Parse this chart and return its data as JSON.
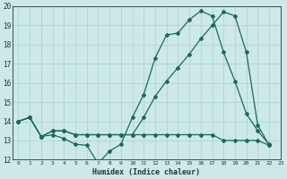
{
  "xlabel": "Humidex (Indice chaleur)",
  "xlim": [
    -0.5,
    23
  ],
  "ylim": [
    12,
    20
  ],
  "yticks": [
    12,
    13,
    14,
    15,
    16,
    17,
    18,
    19,
    20
  ],
  "xticks": [
    0,
    1,
    2,
    3,
    4,
    5,
    6,
    7,
    8,
    9,
    10,
    11,
    12,
    13,
    14,
    15,
    16,
    17,
    18,
    19,
    20,
    21,
    22,
    23
  ],
  "bg_color": "#cce8e8",
  "grid_color": "#b0d4d4",
  "line_color": "#1a6b5a",
  "series": [
    {
      "x": [
        0,
        1,
        2,
        3,
        4,
        5,
        6,
        7,
        8,
        9,
        10,
        11,
        12,
        13,
        14,
        15,
        16,
        17,
        18,
        19,
        20,
        21,
        22
      ],
      "y": [
        14.0,
        14.2,
        13.2,
        13.3,
        13.1,
        12.8,
        12.75,
        11.8,
        12.45,
        12.8,
        14.2,
        15.4,
        17.3,
        18.5,
        18.6,
        19.3,
        19.75,
        19.5,
        17.6,
        16.1,
        14.4,
        13.5,
        12.8
      ]
    },
    {
      "x": [
        0,
        1,
        2,
        3,
        4,
        5,
        6,
        7,
        8,
        9,
        10,
        11,
        12,
        13,
        14,
        15,
        16,
        17,
        18,
        19,
        20,
        21,
        22
      ],
      "y": [
        14.0,
        14.2,
        13.2,
        13.5,
        13.5,
        13.3,
        13.3,
        13.3,
        13.3,
        13.3,
        13.3,
        14.2,
        15.3,
        16.1,
        16.8,
        17.5,
        18.3,
        19.0,
        19.7,
        19.5,
        17.6,
        13.8,
        12.75
      ]
    },
    {
      "x": [
        0,
        1,
        2,
        3,
        4,
        5,
        6,
        7,
        8,
        9,
        10,
        11,
        12,
        13,
        14,
        15,
        16,
        17,
        18,
        19,
        20,
        21,
        22
      ],
      "y": [
        14.0,
        14.2,
        13.2,
        13.5,
        13.5,
        13.3,
        13.3,
        13.3,
        13.3,
        13.3,
        13.3,
        13.3,
        13.3,
        13.3,
        13.3,
        13.3,
        13.3,
        13.3,
        13.0,
        13.0,
        13.0,
        13.0,
        12.75
      ]
    }
  ]
}
